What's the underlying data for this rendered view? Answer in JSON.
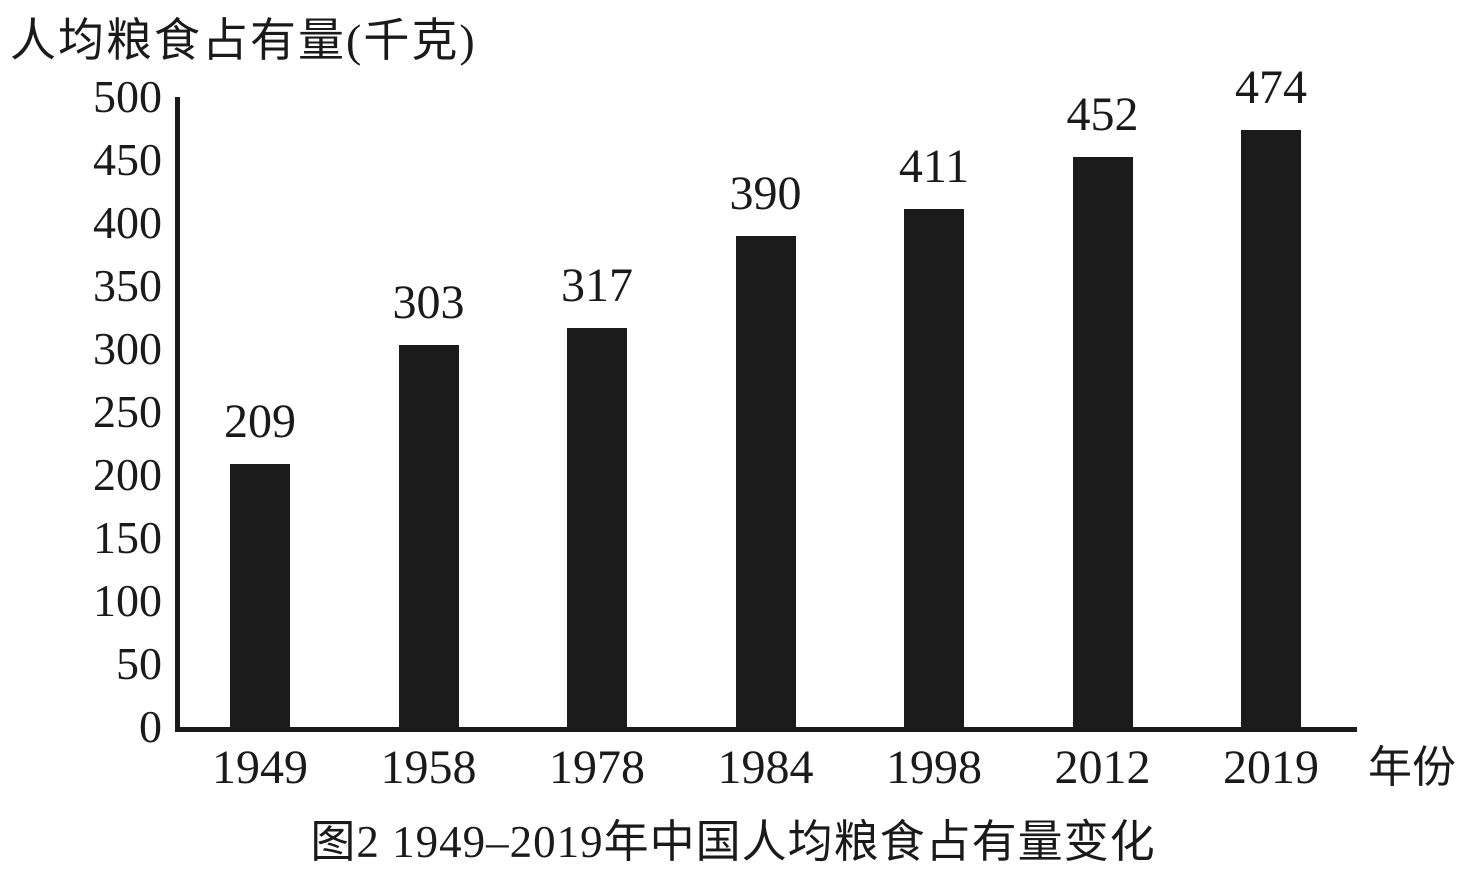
{
  "chart_data": {
    "type": "bar",
    "title": "图2 1949–2019年中国人均粮食占有量变化",
    "ylabel": "人均粮食占有量(千克)",
    "xlabel": "年份",
    "categories": [
      "1949",
      "1958",
      "1978",
      "1984",
      "1998",
      "2012",
      "2019"
    ],
    "values": [
      209,
      303,
      317,
      390,
      411,
      452,
      474
    ],
    "ylim": [
      0,
      500
    ],
    "yticks": [
      0,
      50,
      100,
      150,
      200,
      250,
      300,
      350,
      400,
      450,
      500
    ],
    "bar_color": "#1b1b1b",
    "grid": false,
    "legend": null,
    "value_labels_shown": true
  }
}
